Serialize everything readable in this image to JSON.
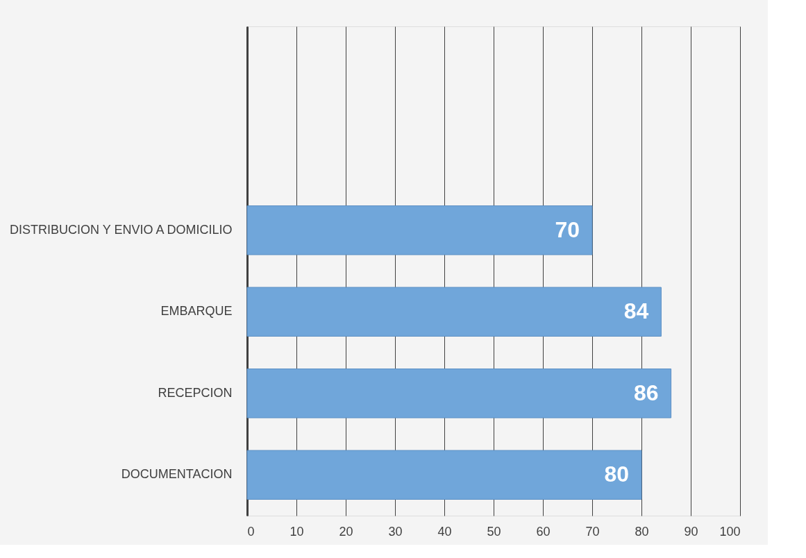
{
  "chart_data": {
    "type": "bar",
    "orientation": "horizontal",
    "categories": [
      null,
      null,
      "DISTRIBUCION Y ENVIO A DOMICILIO",
      "EMBARQUE",
      "RECEPCION",
      "DOCUMENTACION"
    ],
    "values": [
      null,
      null,
      70,
      84,
      86,
      80
    ],
    "color": "#70a6da",
    "xlim": [
      0,
      100
    ],
    "xticks": [
      0,
      10,
      20,
      30,
      40,
      50,
      60,
      70,
      80,
      90,
      100
    ],
    "grid": "x",
    "data_labels": true
  }
}
